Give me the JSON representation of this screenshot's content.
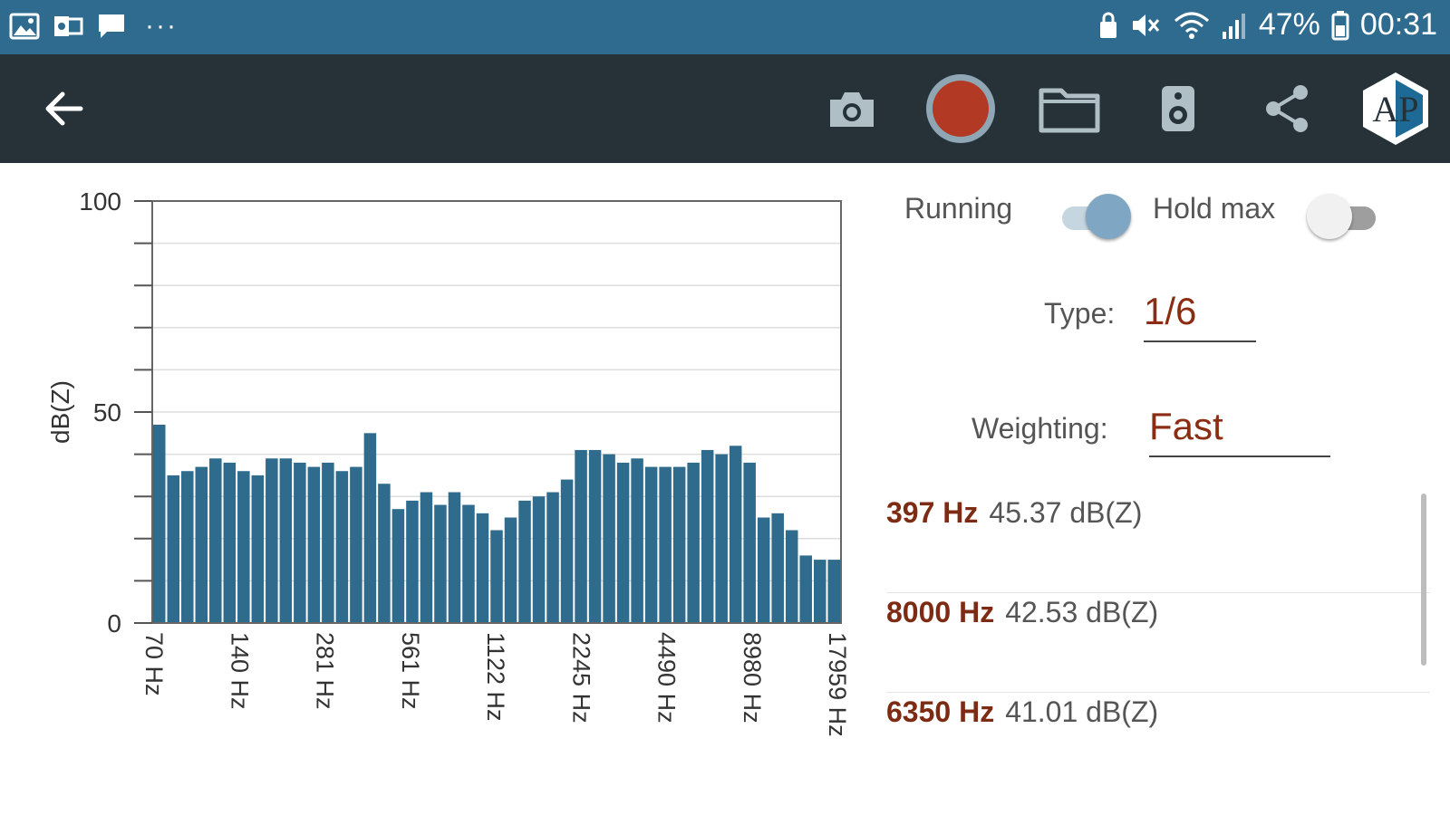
{
  "status_bar": {
    "battery": "47%",
    "time": "00:31",
    "more": "···",
    "icons_left": [
      "gallery-icon",
      "outlook-icon",
      "message-icon"
    ],
    "icons_right": [
      "alarm-icon",
      "mute-icon",
      "wifi-icon",
      "signal-icon",
      "battery-icon"
    ]
  },
  "toolbar": {
    "back_icon": "arrow-left-icon",
    "camera_icon": "camera-icon",
    "record_icon": "record-icon",
    "folder_icon": "folder-icon",
    "speaker_icon": "speaker-icon",
    "share_icon": "share-icon",
    "logo_text": "AP",
    "record_color": "#b23a25"
  },
  "controls": {
    "running_label": "Running",
    "running_on": true,
    "hold_max_label": "Hold max",
    "hold_max_on": false,
    "type_label": "Type:",
    "type_value": "1/6",
    "weighting_label": "Weighting:",
    "weighting_value": "Fast"
  },
  "peaks": [
    {
      "hz": "397 Hz",
      "db": "45.37 dB(Z)"
    },
    {
      "hz": "8000 Hz",
      "db": "42.53 dB(Z)"
    },
    {
      "hz": "6350 Hz",
      "db": "41.01 dB(Z)"
    }
  ],
  "chart_data": {
    "type": "bar",
    "ylabel": "dB(Z)",
    "ylim": [
      0,
      100
    ],
    "yticks": [
      0,
      50,
      100
    ],
    "grid": true,
    "bar_color": "#2f6b8c",
    "xtick_labels": [
      "70 Hz",
      "140 Hz",
      "281 Hz",
      "561 Hz",
      "1122 Hz",
      "2245 Hz",
      "4490 Hz",
      "8980 Hz",
      "17959 Hz"
    ],
    "values": [
      47,
      35,
      36,
      37,
      39,
      38,
      36,
      35,
      39,
      39,
      38,
      37,
      38,
      36,
      37,
      45,
      33,
      27,
      29,
      31,
      28,
      31,
      28,
      26,
      22,
      25,
      29,
      30,
      31,
      34,
      41,
      41,
      40,
      38,
      39,
      37,
      37,
      37,
      38,
      41,
      40,
      42,
      38,
      25,
      26,
      22,
      16,
      15,
      15
    ]
  }
}
